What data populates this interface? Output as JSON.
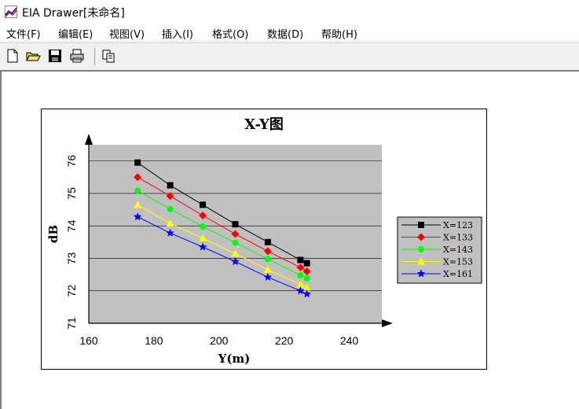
{
  "window": {
    "title": "EIA Drawer[未命名]",
    "app_icon": "chart-app-icon"
  },
  "menu": {
    "items": [
      "文件(F)",
      "编辑(E)",
      "视图(V)",
      "插入(I)",
      "格式(O)",
      "数据(D)",
      "帮助(H)"
    ]
  },
  "toolbar": {
    "buttons": [
      "new-file-icon",
      "open-folder-icon",
      "save-disk-icon",
      "print-icon",
      "copy-icon"
    ]
  },
  "chart_data": {
    "type": "line",
    "title": "X-Y图",
    "xlabel": "Y(m)",
    "ylabel": "dB",
    "xlim": [
      160,
      250
    ],
    "ylim": [
      71,
      76.5
    ],
    "xticks": [
      "160",
      "180",
      "200",
      "220",
      "240"
    ],
    "yticks": [
      "71",
      "72",
      "73",
      "74",
      "75",
      "76"
    ],
    "grid": "horizontal",
    "legend_position": "right",
    "x": [
      175,
      185,
      195,
      205,
      215,
      225,
      227
    ],
    "series": [
      {
        "name": "X=123",
        "color": "#000000",
        "marker": "square",
        "values": [
          75.95,
          75.25,
          74.65,
          74.05,
          73.5,
          72.95,
          72.85
        ]
      },
      {
        "name": "X=133",
        "color": "#ff0000",
        "marker": "diamond",
        "values": [
          75.5,
          74.92,
          74.32,
          73.75,
          73.22,
          72.72,
          72.6
        ]
      },
      {
        "name": "X=143",
        "color": "#00ff00",
        "marker": "circle",
        "values": [
          75.08,
          74.52,
          73.98,
          73.48,
          72.98,
          72.48,
          72.38
        ]
      },
      {
        "name": "X=153",
        "color": "#ffff00",
        "marker": "triangle",
        "values": [
          74.65,
          74.08,
          73.62,
          73.15,
          72.65,
          72.2,
          72.1
        ]
      },
      {
        "name": "X=161",
        "color": "#0000ff",
        "marker": "star",
        "values": [
          74.28,
          73.78,
          73.35,
          72.9,
          72.42,
          72.0,
          71.9
        ]
      }
    ]
  }
}
